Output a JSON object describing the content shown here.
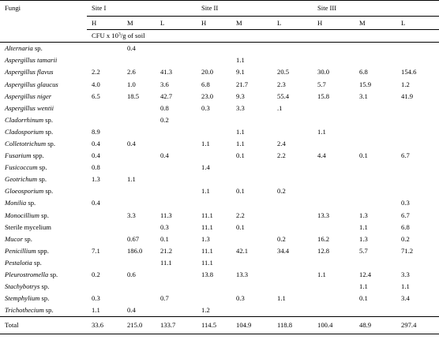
{
  "header": {
    "fungi_label": "Fungi",
    "sites": [
      "Site I",
      "Site II",
      "Site III"
    ],
    "levels": [
      "H",
      "M",
      "L"
    ],
    "unit_prefix": "CFU x 10",
    "unit_exp": "3",
    "unit_suffix": "/g of soil"
  },
  "rows": [
    {
      "genus": "Alternaria",
      "rest": " sp.",
      "v": [
        "",
        "0.4",
        "",
        "",
        "",
        "",
        "",
        "",
        ""
      ]
    },
    {
      "genus": "Aspergillus tamarii",
      "rest": "",
      "v": [
        "",
        "",
        "",
        "",
        "1.1",
        "",
        "",
        "",
        ""
      ]
    },
    {
      "genus": "Aspergillus flavus",
      "rest": "",
      "v": [
        "2.2",
        "2.6",
        "41.3",
        "20.0",
        "9.1",
        "20.5",
        "30.0",
        "6.8",
        "154.6"
      ]
    },
    {
      "genus": "Aspergillus glaucus",
      "rest": "",
      "v": [
        "4.0",
        "1.0",
        "3.6",
        "6.8",
        "21.7",
        "2.3",
        "5.7",
        "15.9",
        "1.2"
      ]
    },
    {
      "genus": "Aspergillus niger",
      "rest": "",
      "v": [
        "6.5",
        "18.5",
        "42.7",
        "23.0",
        "9.3",
        "55.4",
        "15.8",
        "3.1",
        "41.9"
      ]
    },
    {
      "genus": "Aspergillus wentii",
      "rest": "",
      "v": [
        "",
        "",
        "0.8",
        "0.3",
        "3.3",
        ".1",
        "",
        "",
        ""
      ]
    },
    {
      "genus": "Cladorrhinum",
      "rest": " sp.",
      "v": [
        "",
        "",
        "0.2",
        "",
        "",
        "",
        "",
        "",
        ""
      ]
    },
    {
      "genus": "Cladosporium",
      "rest": " sp.",
      "v": [
        "8.9",
        "",
        "",
        "",
        "1.1",
        "",
        "1.1",
        "",
        ""
      ]
    },
    {
      "genus": "Colletotrichum",
      "rest": " sp.",
      "v": [
        "0.4",
        "0.4",
        "",
        "1.1",
        "1.1",
        "2.4",
        "",
        "",
        ""
      ]
    },
    {
      "genus": "Fusarium",
      "rest": " spp.",
      "v": [
        "0.4",
        "",
        "0.4",
        "",
        "0.1",
        "2.2",
        "4.4",
        "0.1",
        "6.7"
      ]
    },
    {
      "genus": "Fusicoccum",
      "rest": " sp.",
      "v": [
        "0.8",
        "",
        "",
        "1.4",
        "",
        "",
        "",
        "",
        ""
      ]
    },
    {
      "genus": "Geotrichum",
      "rest": " sp.",
      "v": [
        "1.3",
        "1.1",
        "",
        "",
        "",
        "",
        "",
        "",
        ""
      ]
    },
    {
      "genus": "Gloeosporium",
      "rest": " sp.",
      "v": [
        "",
        "",
        "",
        "1.1",
        "0.1",
        "0.2",
        "",
        "",
        ""
      ]
    },
    {
      "genus": "Monilia",
      "rest": " sp.",
      "v": [
        "0.4",
        "",
        "",
        "",
        "",
        "",
        "",
        "",
        "0.3"
      ]
    },
    {
      "genus": "Monocillium",
      "rest": " sp.",
      "v": [
        "",
        "3.3",
        "11.3",
        "11.1",
        "2.2",
        "",
        "13.3",
        "1.3",
        "6.7"
      ]
    },
    {
      "genus": "",
      "rest": "Sterile mycelium",
      "v": [
        "",
        "",
        "0.3",
        "11.1",
        "0.1",
        "",
        "",
        "1.1",
        "6.8"
      ]
    },
    {
      "genus": "Mucor",
      "rest": " sp.",
      "v": [
        "",
        "0.67",
        "0.1",
        "1.3",
        "",
        "0.2",
        "16.2",
        "1.3",
        "0.2"
      ]
    },
    {
      "genus": "Penicillium",
      "rest": " spp.",
      "v": [
        "7.1",
        "186.0",
        "21.2",
        "11.1",
        "42.1",
        "34.4",
        "12.8",
        "5.7",
        "71.2"
      ]
    },
    {
      "genus": "Pestalotia",
      "rest": " sp.",
      "v": [
        "",
        "",
        "11.1",
        "11.1",
        "",
        "",
        "",
        "",
        ""
      ]
    },
    {
      "genus": "Pleurostromella",
      "rest": " sp.",
      "v": [
        "0.2",
        "0.6",
        "",
        "13.8",
        "13.3",
        "",
        "1.1",
        "12.4",
        "3.3"
      ]
    },
    {
      "genus": "Stachybotrys",
      "rest": " sp.",
      "v": [
        "",
        "",
        "",
        "",
        "",
        "",
        "",
        "1.1",
        "1.1"
      ]
    },
    {
      "genus": "Stemphylium",
      "rest": " sp.",
      "v": [
        "0.3",
        "",
        "0.7",
        "",
        "0.3",
        "1.1",
        "",
        "0.1",
        "3.4"
      ]
    },
    {
      "genus": "Trichothecium",
      "rest": " sp.",
      "v": [
        "1.1",
        "0.4",
        "",
        "1.2",
        "",
        "",
        "",
        "",
        ""
      ]
    }
  ],
  "total": {
    "label": "Total",
    "v": [
      "33.6",
      "215.0",
      "133.7",
      "114.5",
      "104.9",
      "118.8",
      "100.4",
      "48.9",
      "297.4"
    ]
  }
}
